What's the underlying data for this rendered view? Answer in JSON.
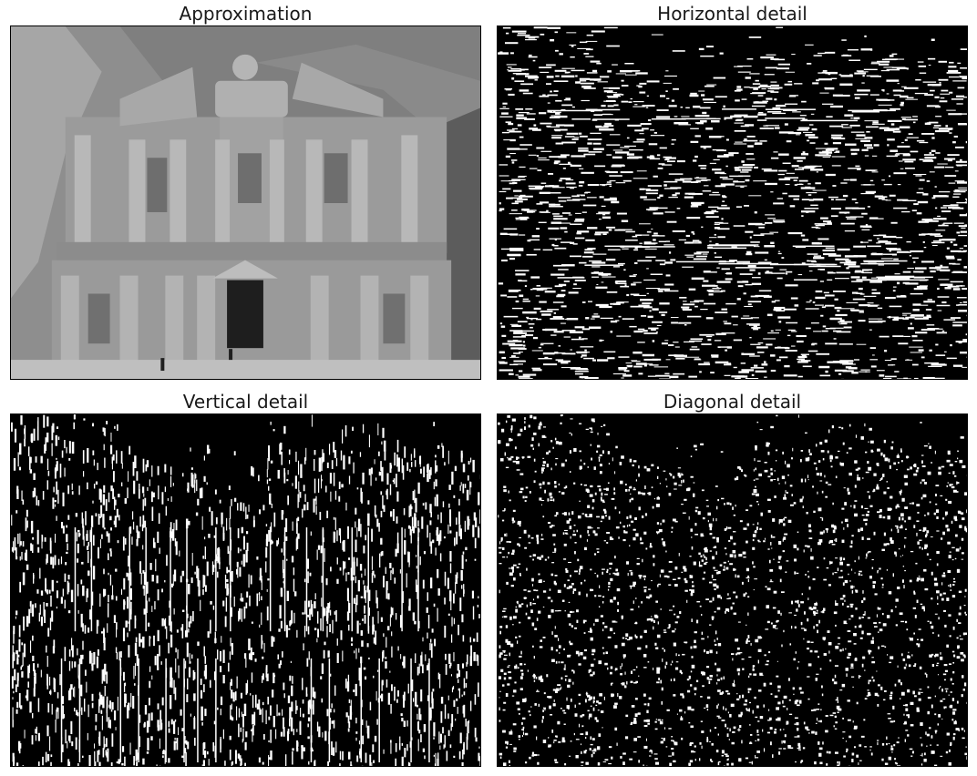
{
  "panels": [
    {
      "title": "Approximation"
    },
    {
      "title": "Horizontal detail"
    },
    {
      "title": "Vertical detail"
    },
    {
      "title": "Diagonal detail"
    }
  ],
  "colors": {
    "background": "#ffffff",
    "detail_bg": "#000000",
    "detail_fg": "#ffffff",
    "sky": "#7f7f7f",
    "rock": "#8a8a8a",
    "stone": "#9c9c9c",
    "shadow": "#3a3a3a"
  }
}
